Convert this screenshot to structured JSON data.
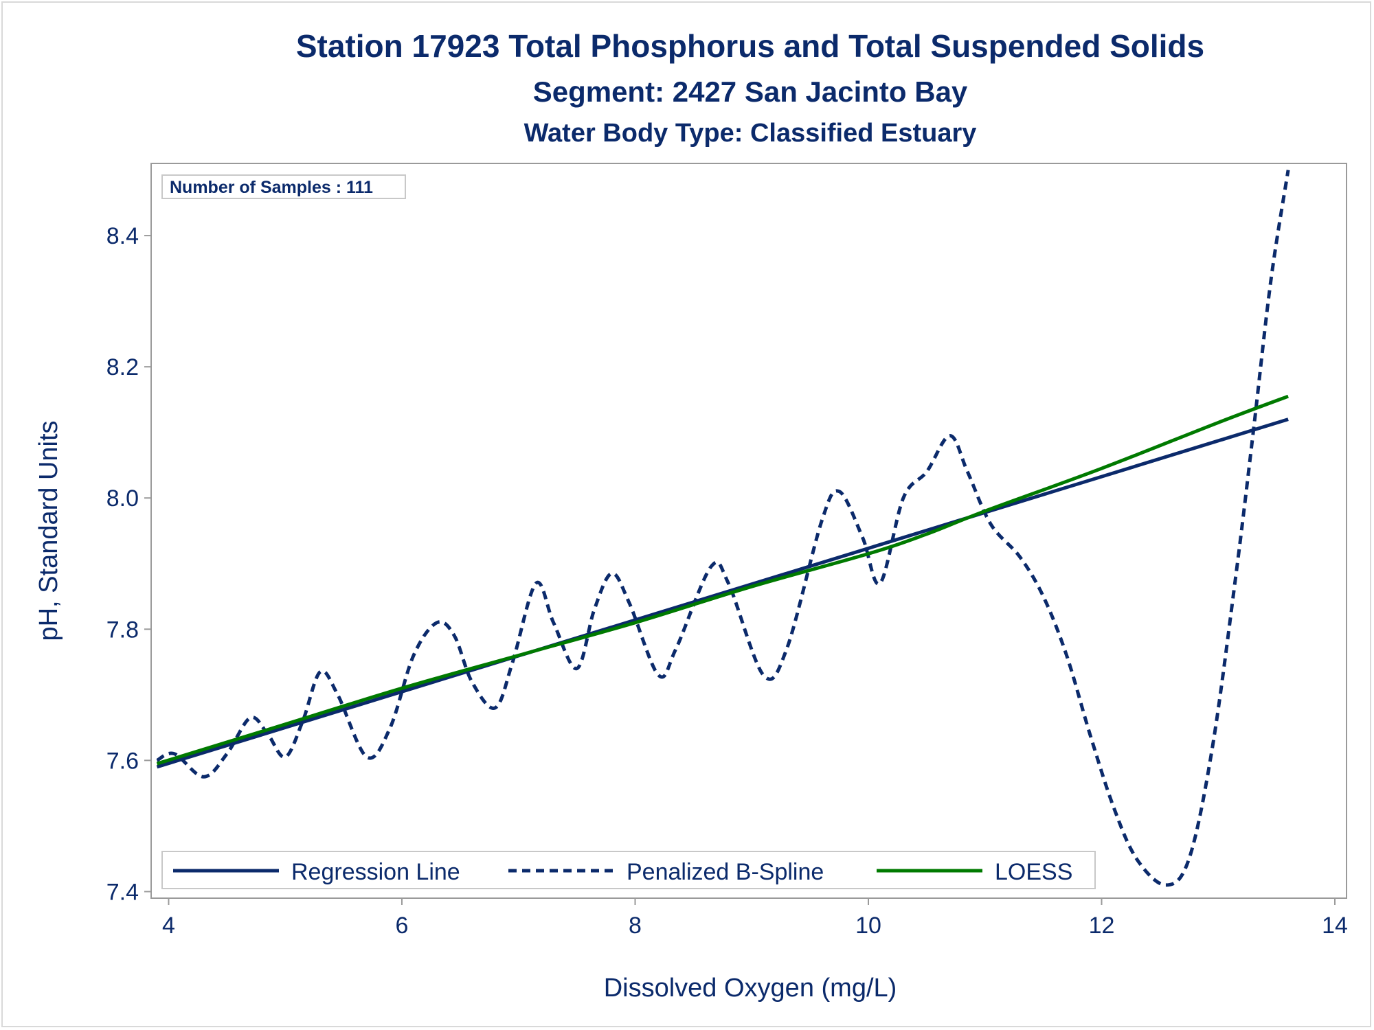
{
  "chart_data": {
    "type": "line",
    "title": "Station 17923  Total Phosphorus and Total Suspended Solids",
    "subtitle": "Segment: 2427  San Jacinto Bay",
    "subtitle2": "Water Body Type: Classified Estuary",
    "xlabel": "Dissolved Oxygen (mg/L)",
    "ylabel": "pH, Standard Units",
    "xlim": [
      3.85,
      14.1
    ],
    "ylim": [
      7.39,
      8.51
    ],
    "xticks": [
      "4",
      "6",
      "8",
      "10",
      "12",
      "14"
    ],
    "yticks": [
      "7.4",
      "7.6",
      "7.8",
      "8.0",
      "8.2",
      "8.4"
    ],
    "xtick_values": [
      4,
      6,
      8,
      10,
      12,
      14
    ],
    "ytick_values": [
      7.4,
      7.6,
      7.8,
      8.0,
      8.2,
      8.4
    ],
    "annotation": "Number of Samples : 111",
    "legend_position": "bottom-inside",
    "series": [
      {
        "name": "Regression Line",
        "style": "solid",
        "color": "#0b2a6b",
        "x": [
          3.9,
          13.6
        ],
        "y": [
          7.59,
          8.12
        ]
      },
      {
        "name": "Penalized B-Spline",
        "style": "dashed",
        "color": "#0b2a6b",
        "x": [
          3.9,
          4.05,
          4.3,
          4.5,
          4.7,
          4.85,
          5.0,
          5.15,
          5.3,
          5.45,
          5.7,
          5.9,
          6.1,
          6.3,
          6.45,
          6.6,
          6.8,
          6.95,
          7.15,
          7.3,
          7.5,
          7.65,
          7.8,
          7.95,
          8.2,
          8.35,
          8.65,
          8.8,
          9.1,
          9.3,
          9.6,
          9.75,
          9.95,
          10.1,
          10.3,
          10.5,
          10.7,
          10.85,
          11.05,
          11.3,
          11.5,
          11.7,
          11.9,
          12.1,
          12.3,
          12.55,
          12.75,
          12.95,
          13.15,
          13.3,
          13.45,
          13.6
        ],
        "y": [
          7.6,
          7.61,
          7.575,
          7.61,
          7.665,
          7.64,
          7.605,
          7.66,
          7.735,
          7.7,
          7.605,
          7.65,
          7.76,
          7.81,
          7.79,
          7.72,
          7.68,
          7.75,
          7.87,
          7.81,
          7.74,
          7.83,
          7.885,
          7.84,
          7.73,
          7.77,
          7.895,
          7.87,
          7.73,
          7.77,
          7.965,
          8.01,
          7.94,
          7.87,
          8.0,
          8.04,
          8.095,
          8.04,
          7.96,
          7.91,
          7.85,
          7.76,
          7.64,
          7.53,
          7.45,
          7.41,
          7.45,
          7.62,
          7.88,
          8.1,
          8.33,
          8.5
        ]
      },
      {
        "name": "LOESS",
        "style": "solid",
        "color": "#007a00",
        "x": [
          3.9,
          5.0,
          6.0,
          7.0,
          8.0,
          9.0,
          10.0,
          10.5,
          11.0,
          12.0,
          13.0,
          13.6
        ],
        "y": [
          7.595,
          7.655,
          7.71,
          7.76,
          7.81,
          7.865,
          7.915,
          7.945,
          7.98,
          8.045,
          8.115,
          8.155
        ]
      }
    ]
  },
  "colors": {
    "text": "#0b2a6b",
    "frame": "#9a9a9a",
    "loess": "#007a00"
  }
}
